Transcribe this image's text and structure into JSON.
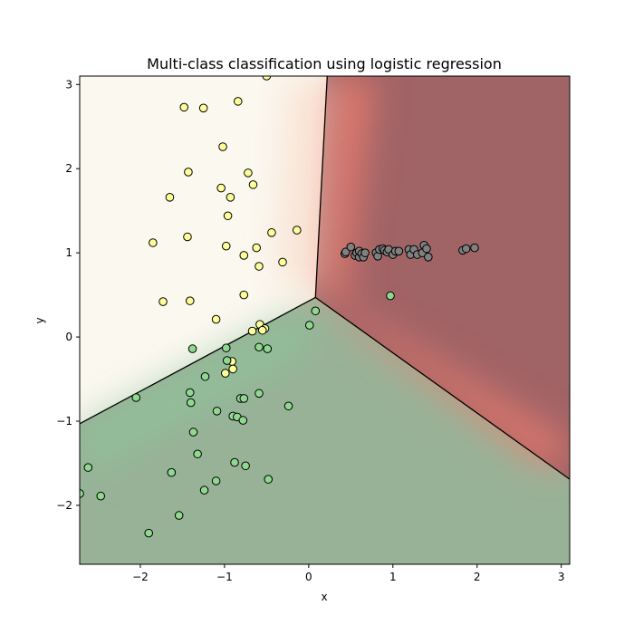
{
  "chart_data": {
    "type": "scatter",
    "title": "Multi-class classification using logistic regression",
    "xlabel": "x",
    "ylabel": "y",
    "xlim": [
      -2.72,
      3.1
    ],
    "ylim": [
      -2.7,
      3.1
    ],
    "xticks": [
      -2,
      -1,
      0,
      1,
      2,
      3
    ],
    "yticks": [
      -2,
      -1,
      0,
      1,
      2,
      3
    ],
    "xtick_labels": [
      "−2",
      "−1",
      "0",
      "1",
      "2",
      "3"
    ],
    "ytick_labels": [
      "−2",
      "−1",
      "0",
      "1",
      "2",
      "3"
    ],
    "grid": false,
    "legend": "none",
    "decision_boundaries": [
      {
        "from": [
          0.08,
          0.47
        ],
        "to": [
          0.22,
          3.1
        ]
      },
      {
        "from": [
          0.08,
          0.47
        ],
        "to": [
          -2.72,
          -1.03
        ]
      },
      {
        "from": [
          0.08,
          0.47
        ],
        "to": [
          3.1,
          -1.69
        ]
      }
    ],
    "region_colors": {
      "yellow": "#fbf8f0",
      "green": "#98b298",
      "red": "#a06366",
      "red_bright": "#f28070"
    },
    "series": [
      {
        "color": "#ffff99",
        "points": [
          [
            -0.5,
            3.1
          ],
          [
            -1.48,
            2.73
          ],
          [
            -1.25,
            2.72
          ],
          [
            -0.84,
            2.8
          ],
          [
            -1.02,
            2.26
          ],
          [
            -1.43,
            1.96
          ],
          [
            -0.72,
            1.95
          ],
          [
            -1.65,
            1.66
          ],
          [
            -1.04,
            1.77
          ],
          [
            -0.93,
            1.66
          ],
          [
            -0.66,
            1.81
          ],
          [
            -0.96,
            1.44
          ],
          [
            -1.44,
            1.19
          ],
          [
            -1.85,
            1.12
          ],
          [
            -0.98,
            1.08
          ],
          [
            -0.62,
            1.06
          ],
          [
            -0.44,
            1.24
          ],
          [
            -0.14,
            1.27
          ],
          [
            -0.77,
            0.97
          ],
          [
            -0.59,
            0.84
          ],
          [
            -0.31,
            0.89
          ],
          [
            -1.73,
            0.42
          ],
          [
            -1.41,
            0.43
          ],
          [
            -0.77,
            0.5
          ],
          [
            -1.1,
            0.21
          ],
          [
            -0.67,
            0.07
          ],
          [
            -0.58,
            0.15
          ],
          [
            -0.52,
            0.1
          ],
          [
            -0.55,
            0.08
          ],
          [
            -0.91,
            -0.29
          ],
          [
            -0.99,
            -0.43
          ],
          [
            -0.9,
            -0.38
          ]
        ]
      },
      {
        "color": "#90d890",
        "points": [
          [
            0.08,
            0.31
          ],
          [
            0.01,
            0.14
          ],
          [
            0.97,
            0.49
          ],
          [
            -1.38,
            -0.14
          ],
          [
            -0.98,
            -0.13
          ],
          [
            -0.59,
            -0.12
          ],
          [
            -0.49,
            -0.14
          ],
          [
            -0.97,
            -0.28
          ],
          [
            -1.23,
            -0.47
          ],
          [
            -1.41,
            -0.66
          ],
          [
            -1.4,
            -0.78
          ],
          [
            -2.05,
            -0.72
          ],
          [
            -0.81,
            -0.73
          ],
          [
            -0.77,
            -0.73
          ],
          [
            -0.59,
            -0.67
          ],
          [
            -0.24,
            -0.82
          ],
          [
            -1.09,
            -0.88
          ],
          [
            -0.9,
            -0.94
          ],
          [
            -0.85,
            -0.95
          ],
          [
            -0.78,
            -0.99
          ],
          [
            -1.37,
            -1.13
          ],
          [
            -1.32,
            -1.39
          ],
          [
            -0.88,
            -1.49
          ],
          [
            -0.75,
            -1.53
          ],
          [
            -2.62,
            -1.55
          ],
          [
            -1.63,
            -1.61
          ],
          [
            -0.48,
            -1.69
          ],
          [
            -1.1,
            -1.71
          ],
          [
            -1.24,
            -1.82
          ],
          [
            -2.72,
            -1.86
          ],
          [
            -2.47,
            -1.89
          ],
          [
            -1.54,
            -2.12
          ],
          [
            -1.9,
            -2.33
          ]
        ]
      },
      {
        "color": "#808080",
        "points": [
          [
            0.43,
            0.99
          ],
          [
            0.44,
            1.01
          ],
          [
            0.5,
            1.07
          ],
          [
            0.55,
            0.97
          ],
          [
            0.57,
            1.0
          ],
          [
            0.6,
            0.95
          ],
          [
            0.6,
            1.02
          ],
          [
            0.63,
            0.99
          ],
          [
            0.65,
            0.95
          ],
          [
            0.67,
            1.0
          ],
          [
            0.8,
            1.0
          ],
          [
            0.82,
            0.96
          ],
          [
            0.84,
            1.04
          ],
          [
            0.88,
            1.05
          ],
          [
            0.9,
            1.03
          ],
          [
            0.93,
            1.01
          ],
          [
            0.95,
            1.04
          ],
          [
            1.0,
            0.98
          ],
          [
            1.03,
            1.02
          ],
          [
            1.07,
            1.02
          ],
          [
            1.19,
            1.04
          ],
          [
            1.21,
            0.98
          ],
          [
            1.25,
            1.04
          ],
          [
            1.29,
            0.98
          ],
          [
            1.35,
            1.0
          ],
          [
            1.37,
            1.09
          ],
          [
            1.4,
            1.05
          ],
          [
            1.42,
            0.95
          ],
          [
            1.83,
            1.03
          ],
          [
            1.87,
            1.05
          ],
          [
            1.97,
            1.06
          ]
        ]
      }
    ]
  }
}
